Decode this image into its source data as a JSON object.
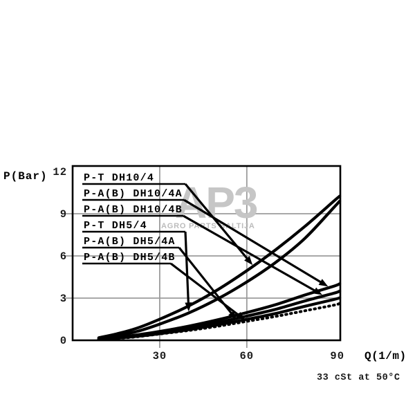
{
  "watermark": {
    "logo_text": "AP3",
    "subtitle": "AGRO PARTS BALTIJA",
    "logo_color": "#c6c6c6",
    "subtitle_color": "#bcbcbc"
  },
  "chart_data": {
    "type": "line",
    "title": "",
    "xlabel": "Q(1/m)",
    "ylabel": "P(Bar)",
    "note": "33 cSt at 50°C",
    "x_ticks": [
      30,
      60,
      90
    ],
    "y_ticks": [
      0,
      3,
      6,
      9,
      12
    ],
    "xlim": [
      0,
      92.2
    ],
    "ylim": [
      0,
      12.4
    ],
    "grid": true,
    "legend_position": "upper-left-inside",
    "colors": {
      "axis": "#000000",
      "grid": "#9b9b9b",
      "curve": "#000000"
    },
    "x": [
      9,
      15,
      22,
      30,
      40,
      50,
      60,
      70,
      80,
      90,
      92
    ],
    "series": [
      {
        "name": "P-T DH10/4",
        "style": "solid",
        "p": [
          0.18,
          0.45,
          0.85,
          1.5,
          2.45,
          3.6,
          4.95,
          6.45,
          8.1,
          9.9,
          10.25
        ]
      },
      {
        "name": "P-A(B) DH10/4A",
        "style": "solid",
        "p": [
          0.09,
          0.2,
          0.38,
          0.63,
          1.01,
          1.46,
          1.97,
          2.54,
          3.22,
          3.85,
          4.02
        ]
      },
      {
        "name": "P-A(B) DH10/4B",
        "style": "solid",
        "p": [
          0.08,
          0.17,
          0.33,
          0.55,
          0.88,
          1.27,
          1.72,
          2.21,
          2.8,
          3.35,
          3.5
        ]
      },
      {
        "name": "P-T DH5/4",
        "style": "solid",
        "p": [
          0.12,
          0.32,
          0.62,
          1.15,
          1.95,
          2.95,
          4.15,
          5.55,
          7.25,
          9.45,
          9.9
        ]
      },
      {
        "name": "P-A(B) DH5/4A",
        "style": "solid",
        "p": [
          0.07,
          0.15,
          0.28,
          0.47,
          0.76,
          1.1,
          1.49,
          1.91,
          2.42,
          2.9,
          3.02
        ]
      },
      {
        "name": "P-A(B) DH5/4B",
        "style": "dotted",
        "p": [
          0.06,
          0.13,
          0.25,
          0.45,
          0.7,
          1.0,
          1.35,
          1.7,
          2.1,
          2.5,
          2.62
        ]
      }
    ],
    "legend": [
      {
        "label": "P-T DH10/4",
        "series": 0,
        "target_q": 62
      },
      {
        "label": "P-A(B) DH10/4A",
        "series": 1,
        "target_q": 88
      },
      {
        "label": "P-A(B) DH10/4B",
        "series": 2,
        "target_q": 86
      },
      {
        "label": "P-T DH5/4",
        "series": 3,
        "target_q": 40
      },
      {
        "label": "P-A(B) DH5/4A",
        "series": 4,
        "target_q": 56.5
      },
      {
        "label": "P-A(B) DH5/4B",
        "series": 5,
        "target_q": 59.5
      }
    ]
  }
}
